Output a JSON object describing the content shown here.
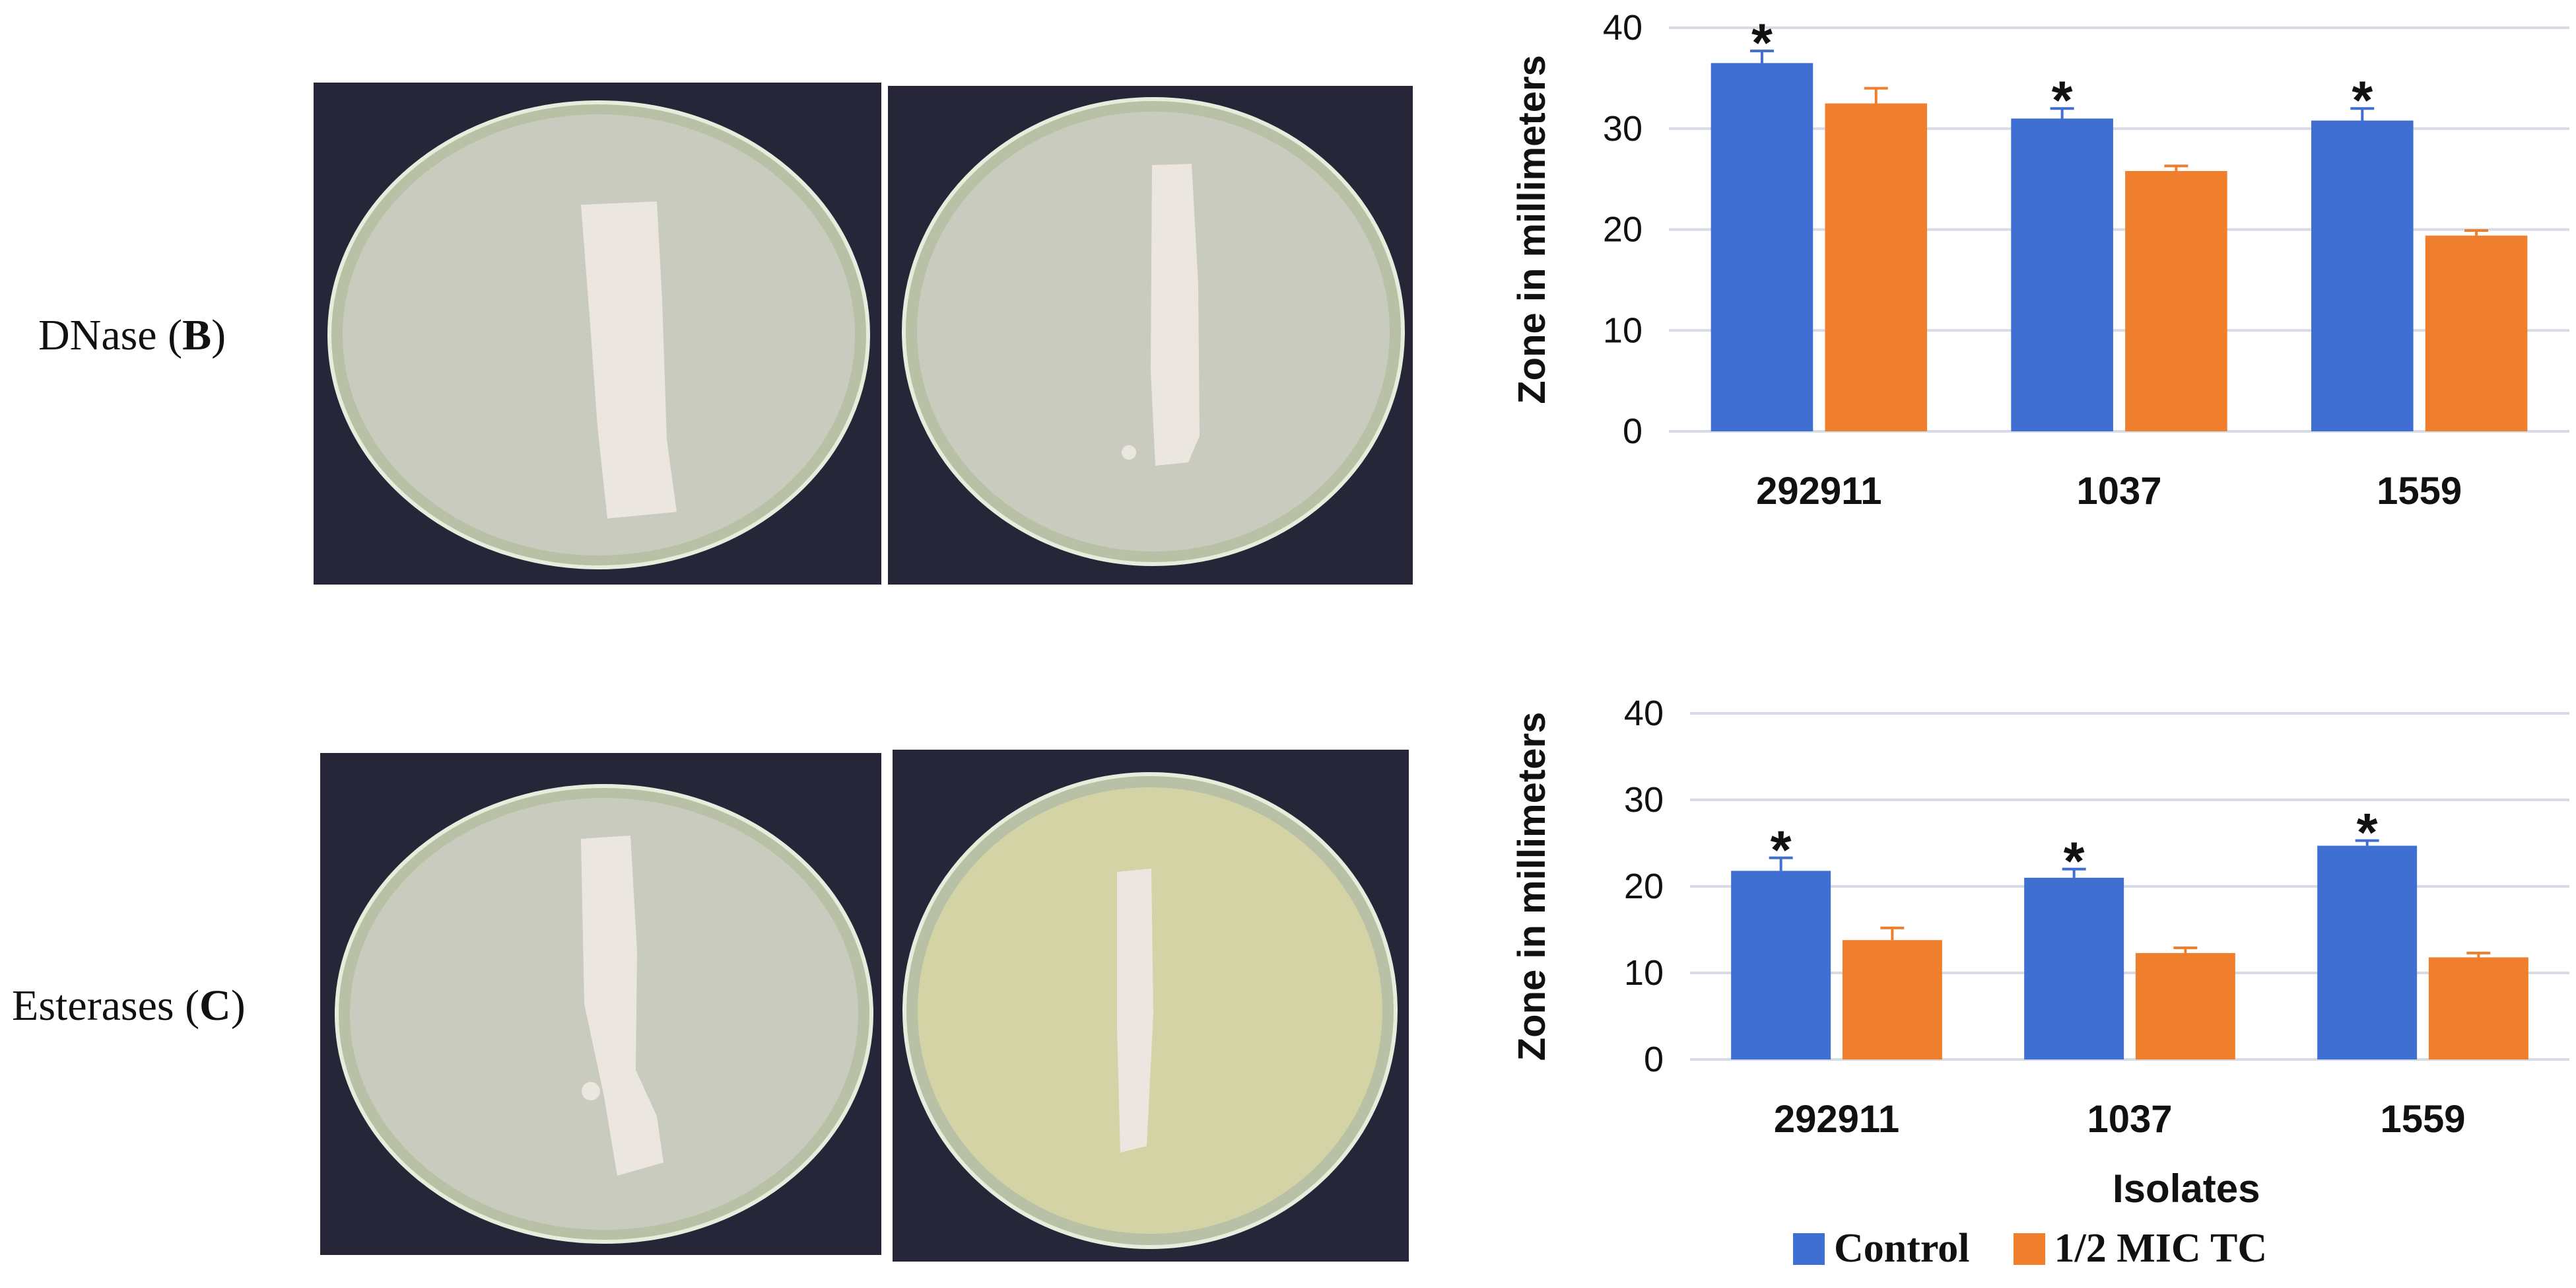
{
  "panels": {
    "dnase": {
      "label_prefix": "DNase (",
      "label_letter": "B",
      "label_suffix": ")"
    },
    "esterases": {
      "label_prefix": "Esterases (",
      "label_letter": "C",
      "label_suffix": ")"
    }
  },
  "colors": {
    "control": "#3f6fd1",
    "half_mic_tc": "#f07f2d",
    "grid": "#d6dbe5",
    "photo_background": "#262638",
    "agar_gray": "#c8cbbd",
    "agar_yellow": "#d3d3a5",
    "colony": "#ece6e0"
  },
  "legend": {
    "control": "Control",
    "half_mic_tc": "1/2 MIC TC"
  },
  "x_title": "Isolates",
  "chart_data": [
    {
      "type": "bar",
      "panel": "B",
      "categories": [
        "292911",
        "1037",
        "1559"
      ],
      "series": [
        {
          "name": "Control",
          "values": [
            36.5,
            31.0,
            30.8
          ],
          "errors": [
            1.2,
            1.0,
            1.2
          ]
        },
        {
          "name": "1/2 MIC TC",
          "values": [
            32.5,
            25.8,
            19.4
          ],
          "errors": [
            1.5,
            0.5,
            0.5
          ]
        }
      ],
      "significance": [
        "*",
        "*",
        "*"
      ],
      "ylabel": "Zone in millimeters",
      "ylim": [
        0,
        40
      ],
      "yticks": [
        "0",
        "10",
        "20",
        "30",
        "40"
      ],
      "grid": true
    },
    {
      "type": "bar",
      "panel": "C",
      "categories": [
        "292911",
        "1037",
        "1559"
      ],
      "series": [
        {
          "name": "Control",
          "values": [
            21.8,
            21.0,
            24.7
          ],
          "errors": [
            1.5,
            1.0,
            0.6
          ]
        },
        {
          "name": "1/2 MIC TC",
          "values": [
            13.8,
            12.3,
            11.8
          ],
          "errors": [
            1.4,
            0.6,
            0.5
          ]
        }
      ],
      "significance": [
        "*",
        "*",
        "*"
      ],
      "ylabel": "Zone in millimeters",
      "xlabel": "Isolates",
      "ylim": [
        0,
        40
      ],
      "yticks": [
        "0",
        "10",
        "20",
        "30",
        "40"
      ],
      "grid": true
    }
  ]
}
